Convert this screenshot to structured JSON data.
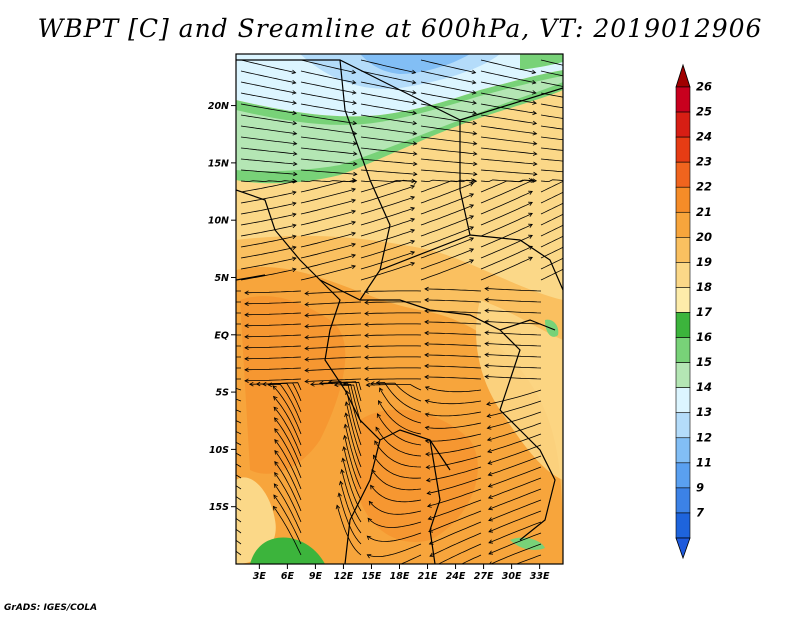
{
  "title": "WBPT [C] and Sreamline at 600hPa, VT: 2019012906",
  "credit": "GrADS: IGES/COLA",
  "map": {
    "lat_labels": [
      "20N",
      "15N",
      "10N",
      "5N",
      "EQ",
      "5S",
      "10S",
      "15S"
    ],
    "lon_labels": [
      "3E",
      "6E",
      "9E",
      "12E",
      "15E",
      "18E",
      "21E",
      "24E",
      "27E",
      "30E",
      "33E"
    ],
    "lat_values": [
      20,
      15,
      10,
      5,
      0,
      -5,
      -10,
      -15
    ],
    "lon_values": [
      3,
      6,
      9,
      12,
      15,
      18,
      21,
      24,
      27,
      30,
      33
    ],
    "lat_range": [
      -20,
      24.5
    ],
    "lon_range": [
      0.5,
      35.5
    ]
  },
  "colorbar": {
    "labels": [
      "26",
      "25",
      "24",
      "23",
      "22",
      "21",
      "20",
      "19",
      "18",
      "17",
      "16",
      "15",
      "14",
      "13",
      "12",
      "11",
      "9",
      "7"
    ],
    "colors": [
      "#c8001e",
      "#d71e14",
      "#e63c14",
      "#f0641e",
      "#f58c28",
      "#f7a53c",
      "#fac060",
      "#fbd888",
      "#fdecaa",
      "#3cb43c",
      "#78d278",
      "#b4e6b4",
      "#dcf5ff",
      "#b4dcfa",
      "#82bef5",
      "#5aa0f0",
      "#3c82e6",
      "#1e64dc"
    ],
    "top_tip_color": "#a00000",
    "bottom_tip_color": "#1e5adc"
  }
}
